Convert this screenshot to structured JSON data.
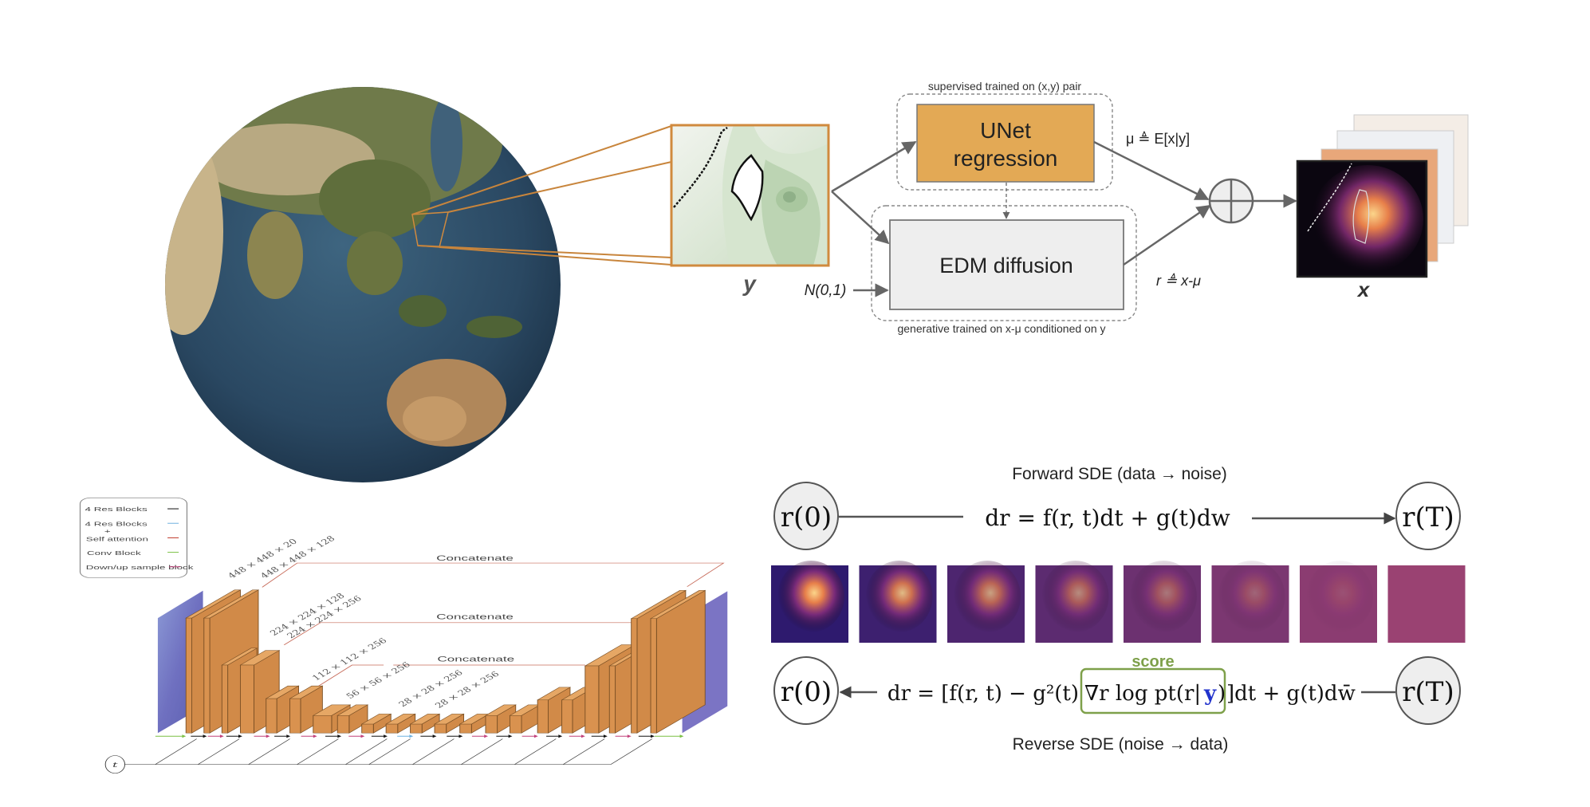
{
  "pipeline": {
    "input_label": "y",
    "noise_label": "N(0,1)",
    "supervised_caption": "supervised trained on (x,y) pair",
    "unet_line1": "UNet",
    "unet_line2": "regression",
    "edm_label": "EDM diffusion",
    "generative_caption": "generative trained on x-μ conditioned on y",
    "mu_label": "μ ≜ E[x|y]",
    "r_label": "r ≜ x-μ",
    "output_label": "x",
    "colors": {
      "unet_box": "#e3a955",
      "edm_box": "#eeeeee",
      "map_frame": "#d08a3e"
    }
  },
  "sde": {
    "forward_title": "Forward SDE (data → noise)",
    "forward_equation": "dr = f(r, t)dt + g(t)dw",
    "reverse_title": "Reverse SDE (noise → data)",
    "reverse_equation_left": "dr = [f(r, t) − g²(t)",
    "score_term": "∇r log pt(r|",
    "score_y": "y",
    "score_close": ")",
    "reverse_equation_right": "]dt + g(t)dw̄",
    "score_label": "score",
    "start_node": "r(0)",
    "end_node": "r(T)",
    "strip_count": 8,
    "colors": {
      "score": "#7ea04a",
      "y_term": "#2233cc"
    }
  },
  "unet": {
    "legend": [
      {
        "label": "4 Res Blocks",
        "color": "#111111"
      },
      {
        "label": "4 Res Blocks",
        "label2": "+",
        "label3": "Self attention",
        "color": "#6fb2e0"
      },
      {
        "label": "Conv Block",
        "color": "#7ac043"
      },
      {
        "label": "Down/up sample block",
        "color": "#c2407a"
      }
    ],
    "self_attention_color": "#c0392b",
    "concat_label": "Concatenate",
    "dims": [
      "448 × 448 × 20",
      "448 × 448 × 128",
      "224 × 224 × 128",
      "224 × 224 × 256",
      "112 × 112 × 256",
      "56 × 56 × 256",
      "28 × 28 × 256",
      "28 × 28 × 256"
    ],
    "time_label": "t",
    "block_color": "#d9924f"
  }
}
